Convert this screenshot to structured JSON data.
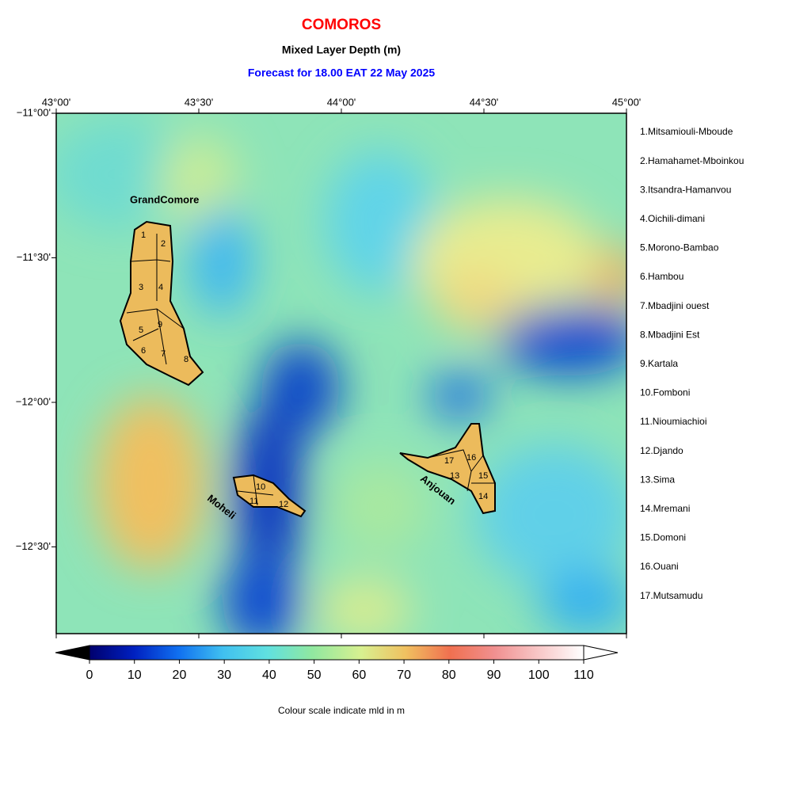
{
  "header": {
    "title": "COMOROS",
    "subtitle": "Mixed Layer Depth (m)",
    "forecast": "Forecast for  18.00 EAT 22 May 2025"
  },
  "map": {
    "xlim": [
      43,
      45
    ],
    "ylim": [
      -12.8,
      -11
    ],
    "xticks": [
      {
        "value": 43,
        "label": "43°00'"
      },
      {
        "value": 43.5,
        "label": "43°30'"
      },
      {
        "value": 44,
        "label": "44°00'"
      },
      {
        "value": 44.5,
        "label": "44°30'"
      },
      {
        "value": 45,
        "label": "45°00'"
      }
    ],
    "yticks": [
      {
        "value": -11,
        "label": "−11°00'"
      },
      {
        "value": -11.5,
        "label": "−11°30'"
      },
      {
        "value": -12,
        "label": "−12°00'"
      },
      {
        "value": -12.5,
        "label": "−12°30'"
      }
    ],
    "islands": {
      "grand_comore": "GrandComore",
      "moheli": "Moheli",
      "anjouan": "Anjouan"
    },
    "regions": [
      "1",
      "2",
      "3",
      "4",
      "5",
      "6",
      "7",
      "8",
      "9",
      "10",
      "11",
      "12",
      "13",
      "14",
      "15",
      "16",
      "17"
    ]
  },
  "legend": [
    "1.Mitsamiouli-Mboude",
    "2.Hamahamet-Mboinkou",
    "3.Itsandra-Hamanvou",
    "4.Oichili-dimani",
    "5.Morono-Bambao",
    "6.Hambou",
    "7.Mbadjini ouest",
    "8.Mbadjini Est",
    "9.Kartala",
    "10.Fomboni",
    "11.Nioumiachioi",
    "12.Djando",
    "13.Sima",
    "14.Mremani",
    "15.Domoni",
    "16.Ouani",
    "17.Mutsamudu"
  ],
  "colorbar": {
    "lim": [
      0,
      110
    ],
    "ticks": [
      0,
      10,
      20,
      30,
      40,
      50,
      60,
      70,
      80,
      90,
      100,
      110
    ],
    "caption": "Colour scale indicate mld in m"
  }
}
